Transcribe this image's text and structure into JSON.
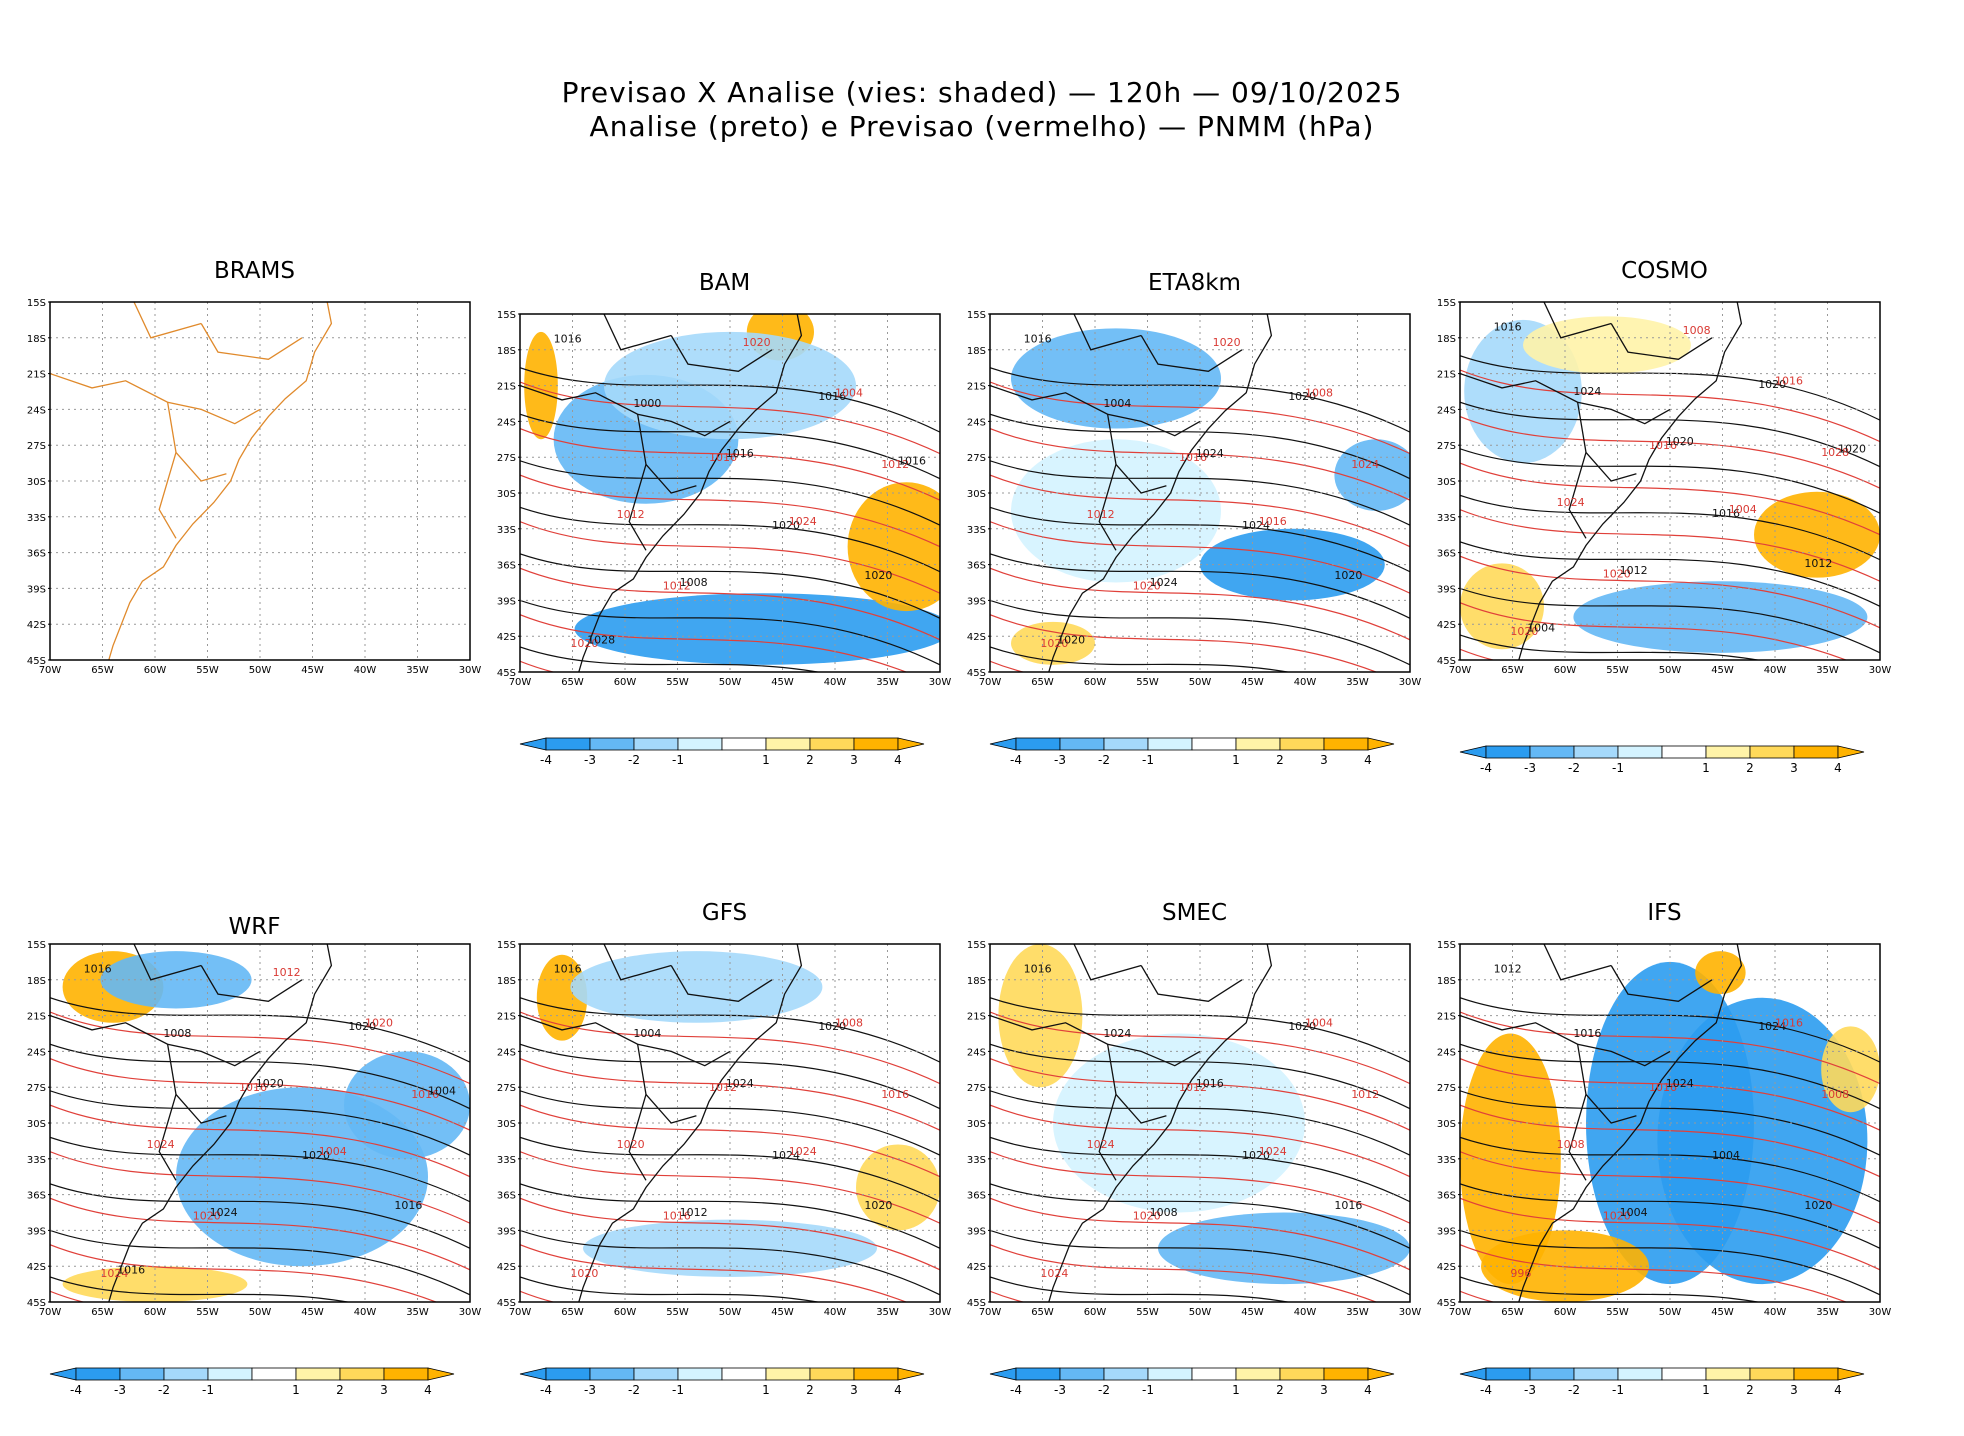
{
  "header": {
    "line1": "Previsao X Analise (vies: shaded) — 120h — 09/10/2025",
    "line2": "Analise (preto) e Previsao (vermelho) — PNMM (hPa)"
  },
  "axes": {
    "lat_labels": [
      "15S",
      "18S",
      "21S",
      "24S",
      "27S",
      "30S",
      "33S",
      "36S",
      "39S",
      "42S",
      "45S"
    ],
    "lon_labels": [
      "70W",
      "65W",
      "60W",
      "55W",
      "50W",
      "45W",
      "40W",
      "35W",
      "30W"
    ]
  },
  "colorbar": {
    "labels": [
      "-4",
      "-3",
      "-2",
      "-1",
      "1",
      "2",
      "3",
      "4"
    ],
    "colors": [
      "#2b9cf0",
      "#64b8f5",
      "#a5d9fb",
      "#d4f3ff",
      "#ffffff",
      "#fff3a8",
      "#ffd95a",
      "#ffb300"
    ]
  },
  "panels": [
    {
      "name": "BRAMS",
      "has_colorbar": false,
      "empty": true,
      "contour_labels": []
    },
    {
      "name": "BAM",
      "has_colorbar": true,
      "contour_labels": [
        "1016",
        "1016",
        "1020",
        "1012",
        "1016",
        "1012",
        "1020",
        "1020",
        "1016",
        "1012",
        "1008",
        "1004",
        "1000",
        "1024",
        "1028",
        "1020",
        "1016"
      ]
    },
    {
      "name": "ETA8km",
      "has_colorbar": true,
      "contour_labels": [
        "1016",
        "1016",
        "1020",
        "1020",
        "1020",
        "1012",
        "1024",
        "1020",
        "1024",
        "1024",
        "1024",
        "1008",
        "1004",
        "1016",
        "1020",
        "1020"
      ]
    },
    {
      "name": "COSMO",
      "has_colorbar": true,
      "contour_labels": [
        "1016",
        "1016",
        "1012",
        "1020",
        "1020",
        "1024",
        "1016",
        "1020",
        "1020",
        "1028",
        "1012",
        "1016",
        "1024",
        "1004",
        "1004",
        "1008",
        "1020"
      ]
    },
    {
      "name": "WRF",
      "has_colorbar": true,
      "contour_labels": [
        "1016",
        "1016",
        "1016",
        "1020",
        "1020",
        "1024",
        "1020",
        "1024",
        "1020",
        "1016",
        "1024",
        "1020",
        "1008",
        "1004",
        "1016",
        "1012",
        "1004"
      ]
    },
    {
      "name": "GFS",
      "has_colorbar": true,
      "contour_labels": [
        "1016",
        "1012",
        "1020",
        "1016",
        "1020",
        "1020",
        "1024",
        "1020",
        "1024",
        "1016",
        "1012",
        "1008",
        "1004",
        "1024"
      ]
    },
    {
      "name": "SMEC",
      "has_colorbar": true,
      "contour_labels": [
        "1016",
        "1012",
        "1016",
        "1020",
        "1020",
        "1024",
        "1020",
        "1024",
        "1016",
        "1012",
        "1008",
        "1004",
        "1024",
        "1024"
      ]
    },
    {
      "name": "IFS",
      "has_colorbar": true,
      "contour_labels": [
        "1012",
        "1016",
        "1020",
        "1020",
        "1024",
        "1008",
        "1004",
        "996",
        "1024",
        "1008",
        "1004",
        "1016",
        "1016"
      ]
    }
  ]
}
